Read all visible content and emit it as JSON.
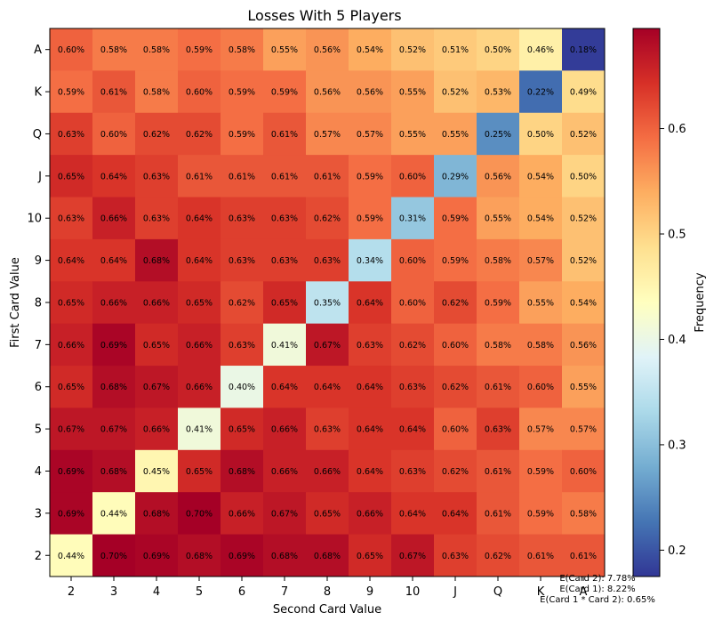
{
  "chart_data": {
    "type": "heatmap",
    "title": "Losses With 5 Players",
    "xlabel": "Second Card Value",
    "ylabel": "First Card Value",
    "x_categories": [
      "2",
      "3",
      "4",
      "5",
      "6",
      "7",
      "8",
      "9",
      "10",
      "J",
      "Q",
      "K",
      "A"
    ],
    "y_categories_top_to_bottom": [
      "A",
      "K",
      "Q",
      "J",
      "10",
      "9",
      "8",
      "7",
      "6",
      "5",
      "4",
      "3",
      "2"
    ],
    "values_percent": [
      [
        0.6,
        0.58,
        0.58,
        0.59,
        0.58,
        0.55,
        0.56,
        0.54,
        0.52,
        0.51,
        0.5,
        0.46,
        0.18
      ],
      [
        0.59,
        0.61,
        0.58,
        0.6,
        0.59,
        0.59,
        0.56,
        0.56,
        0.55,
        0.52,
        0.53,
        0.22,
        0.49
      ],
      [
        0.63,
        0.6,
        0.62,
        0.62,
        0.59,
        0.61,
        0.57,
        0.57,
        0.55,
        0.55,
        0.25,
        0.5,
        0.52
      ],
      [
        0.65,
        0.64,
        0.63,
        0.61,
        0.61,
        0.61,
        0.61,
        0.59,
        0.6,
        0.29,
        0.56,
        0.54,
        0.5
      ],
      [
        0.63,
        0.66,
        0.63,
        0.64,
        0.63,
        0.63,
        0.62,
        0.59,
        0.31,
        0.59,
        0.55,
        0.54,
        0.52
      ],
      [
        0.64,
        0.64,
        0.68,
        0.64,
        0.63,
        0.63,
        0.63,
        0.34,
        0.6,
        0.59,
        0.58,
        0.57,
        0.52
      ],
      [
        0.65,
        0.66,
        0.66,
        0.65,
        0.62,
        0.65,
        0.35,
        0.64,
        0.6,
        0.62,
        0.59,
        0.55,
        0.54
      ],
      [
        0.66,
        0.69,
        0.65,
        0.66,
        0.63,
        0.41,
        0.67,
        0.63,
        0.62,
        0.6,
        0.58,
        0.58,
        0.56
      ],
      [
        0.65,
        0.68,
        0.67,
        0.66,
        0.4,
        0.64,
        0.64,
        0.64,
        0.63,
        0.62,
        0.61,
        0.6,
        0.55
      ],
      [
        0.67,
        0.67,
        0.66,
        0.41,
        0.65,
        0.66,
        0.63,
        0.64,
        0.64,
        0.6,
        0.63,
        0.57,
        0.57
      ],
      [
        0.69,
        0.68,
        0.45,
        0.65,
        0.68,
        0.66,
        0.66,
        0.64,
        0.63,
        0.62,
        0.61,
        0.59,
        0.6
      ],
      [
        0.69,
        0.44,
        0.68,
        0.7,
        0.66,
        0.67,
        0.65,
        0.66,
        0.64,
        0.64,
        0.61,
        0.59,
        0.58
      ],
      [
        0.44,
        0.7,
        0.69,
        0.68,
        0.69,
        0.68,
        0.68,
        0.65,
        0.67,
        0.63,
        0.62,
        0.61,
        0.61
      ]
    ],
    "colorbar": {
      "label": "Frequency",
      "range": [
        0.175,
        0.695
      ],
      "ticks": [
        0.2,
        0.3,
        0.4,
        0.5,
        0.6
      ],
      "colormap": "RdYlBu_r"
    },
    "annotations": [
      "E(Card 2): 7.78%",
      "E(Card 1): 8.22%",
      "E(Card 1 * Card 2): 0.65%"
    ]
  }
}
